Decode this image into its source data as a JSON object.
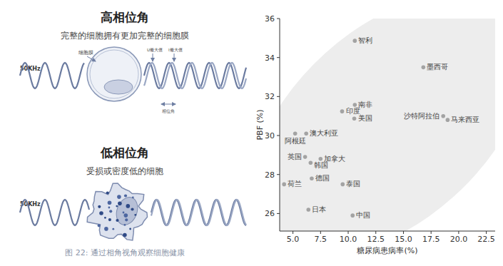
{
  "chart_data": {
    "type": "scatter",
    "x_label": "糖尿病患病率(%)",
    "y_label": "PBF (%)",
    "labels": [
      "智利",
      "墨西哥",
      "南非",
      "印度",
      "美国",
      "沙特阿拉伯",
      "马来西亚",
      "澳大利亚",
      "阿根廷",
      "英国",
      "加拿大",
      "韩国",
      "德国",
      "荷兰",
      "泰国",
      "日本",
      "中国"
    ],
    "x": [
      10.6,
      16.8,
      10.6,
      9.45,
      10.55,
      18.6,
      19.0,
      6.2,
      5.2,
      6.1,
      7.5,
      6.6,
      6.7,
      4.2,
      9.5,
      6.4,
      10.4
    ],
    "values": [
      34.86,
      33.5,
      31.57,
      31.24,
      30.87,
      31.0,
      30.8,
      30.1,
      30.1,
      28.9,
      28.8,
      28.6,
      27.8,
      27.5,
      27.5,
      26.2,
      25.9
    ],
    "color": "#a3a3a3",
    "marker": "circle",
    "grid": false,
    "xlim": [
      3.8,
      23.3
    ],
    "ylim": [
      25.1,
      36
    ],
    "xticks": [
      {
        "value": 5,
        "label": "5.0"
      },
      7.5,
      {
        "value": 10,
        "label": "10.0"
      },
      12.5,
      {
        "value": 15,
        "label": "15.0"
      },
      17.5,
      {
        "value": 20,
        "label": "20.0"
      },
      22.5
    ],
    "yticks": [
      26,
      28,
      30,
      32,
      34,
      36
    ]
  },
  "diagram": {
    "panels": [
      {
        "title": "高相位角",
        "subtitle": "完整的细胞拥有更加完整的细胞膜",
        "frequency": "50KHz",
        "membrane": "细胞膜",
        "voltage_max": "U最大值",
        "current_max": "I最大值",
        "phase_angle": "相位角"
      },
      {
        "title": "低相位角",
        "subtitle": "受损或密度低的细胞",
        "frequency": "50KHz"
      }
    ],
    "caption": "图 22: 通过相角视角观察细胞健康"
  }
}
